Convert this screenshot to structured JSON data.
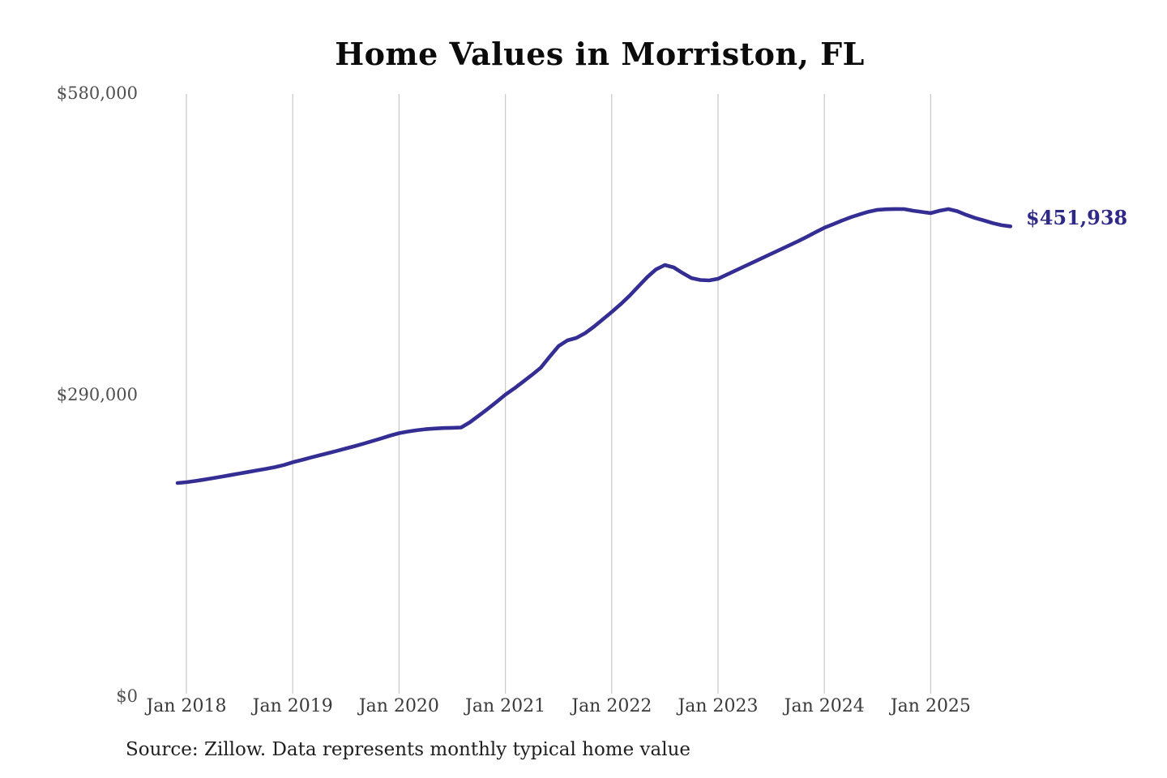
{
  "page": {
    "background_color": "#ffffff"
  },
  "title": "Home Values in Morriston, FL",
  "source_note": "Source: Zillow. Data represents monthly typical home value",
  "chart_data": {
    "type": "line",
    "title": "Home Values in Morriston, FL",
    "xlabel": "",
    "ylabel": "",
    "ylim": [
      0,
      580000
    ],
    "grid": "vertical-only",
    "legend_position": "none",
    "gridline_color": "#cbcbcb",
    "line_color": "#342d93",
    "x_tick_labels": [
      "Jan 2018",
      "Jan 2019",
      "Jan 2020",
      "Jan 2021",
      "Jan 2022",
      "Jan 2023",
      "Jan 2024",
      "Jan 2025"
    ],
    "y_ticks": [
      {
        "value": 0,
        "label": "$0"
      },
      {
        "value": 290000,
        "label": "$290,000"
      },
      {
        "value": 580000,
        "label": "$580,000"
      }
    ],
    "series": [
      {
        "name": "Monthly typical home value",
        "start_month": "2017-12",
        "end_month": "2025-10",
        "frequency": "monthly",
        "values": [
          205000,
          205800,
          207000,
          208300,
          209700,
          211200,
          212700,
          214200,
          215700,
          217200,
          218700,
          220300,
          222300,
          225000,
          227200,
          229400,
          231600,
          233800,
          236000,
          238200,
          240500,
          242900,
          245400,
          248000,
          250600,
          253000,
          254500,
          255800,
          256800,
          257400,
          257900,
          258100,
          258400,
          263500,
          269800,
          276300,
          283100,
          290000,
          296000,
          302500,
          309000,
          316000,
          326600,
          336700,
          342200,
          344600,
          349200,
          355500,
          362500,
          369500,
          377000,
          385000,
          394000,
          403000,
          410500,
          414700,
          412400,
          407000,
          402200,
          400300,
          399900,
          401500,
          405500,
          409500,
          413500,
          417500,
          421500,
          425500,
          429500,
          433500,
          437500,
          441800,
          446200,
          450600,
          454000,
          457500,
          460700,
          463500,
          466000,
          467800,
          468400,
          468600,
          468500,
          467000,
          465800,
          464600,
          467000,
          468500,
          466500,
          463000,
          460000,
          457600,
          455000,
          453000,
          451938
        ]
      }
    ],
    "last_point": {
      "label": "$451,938",
      "value": 451938
    }
  }
}
